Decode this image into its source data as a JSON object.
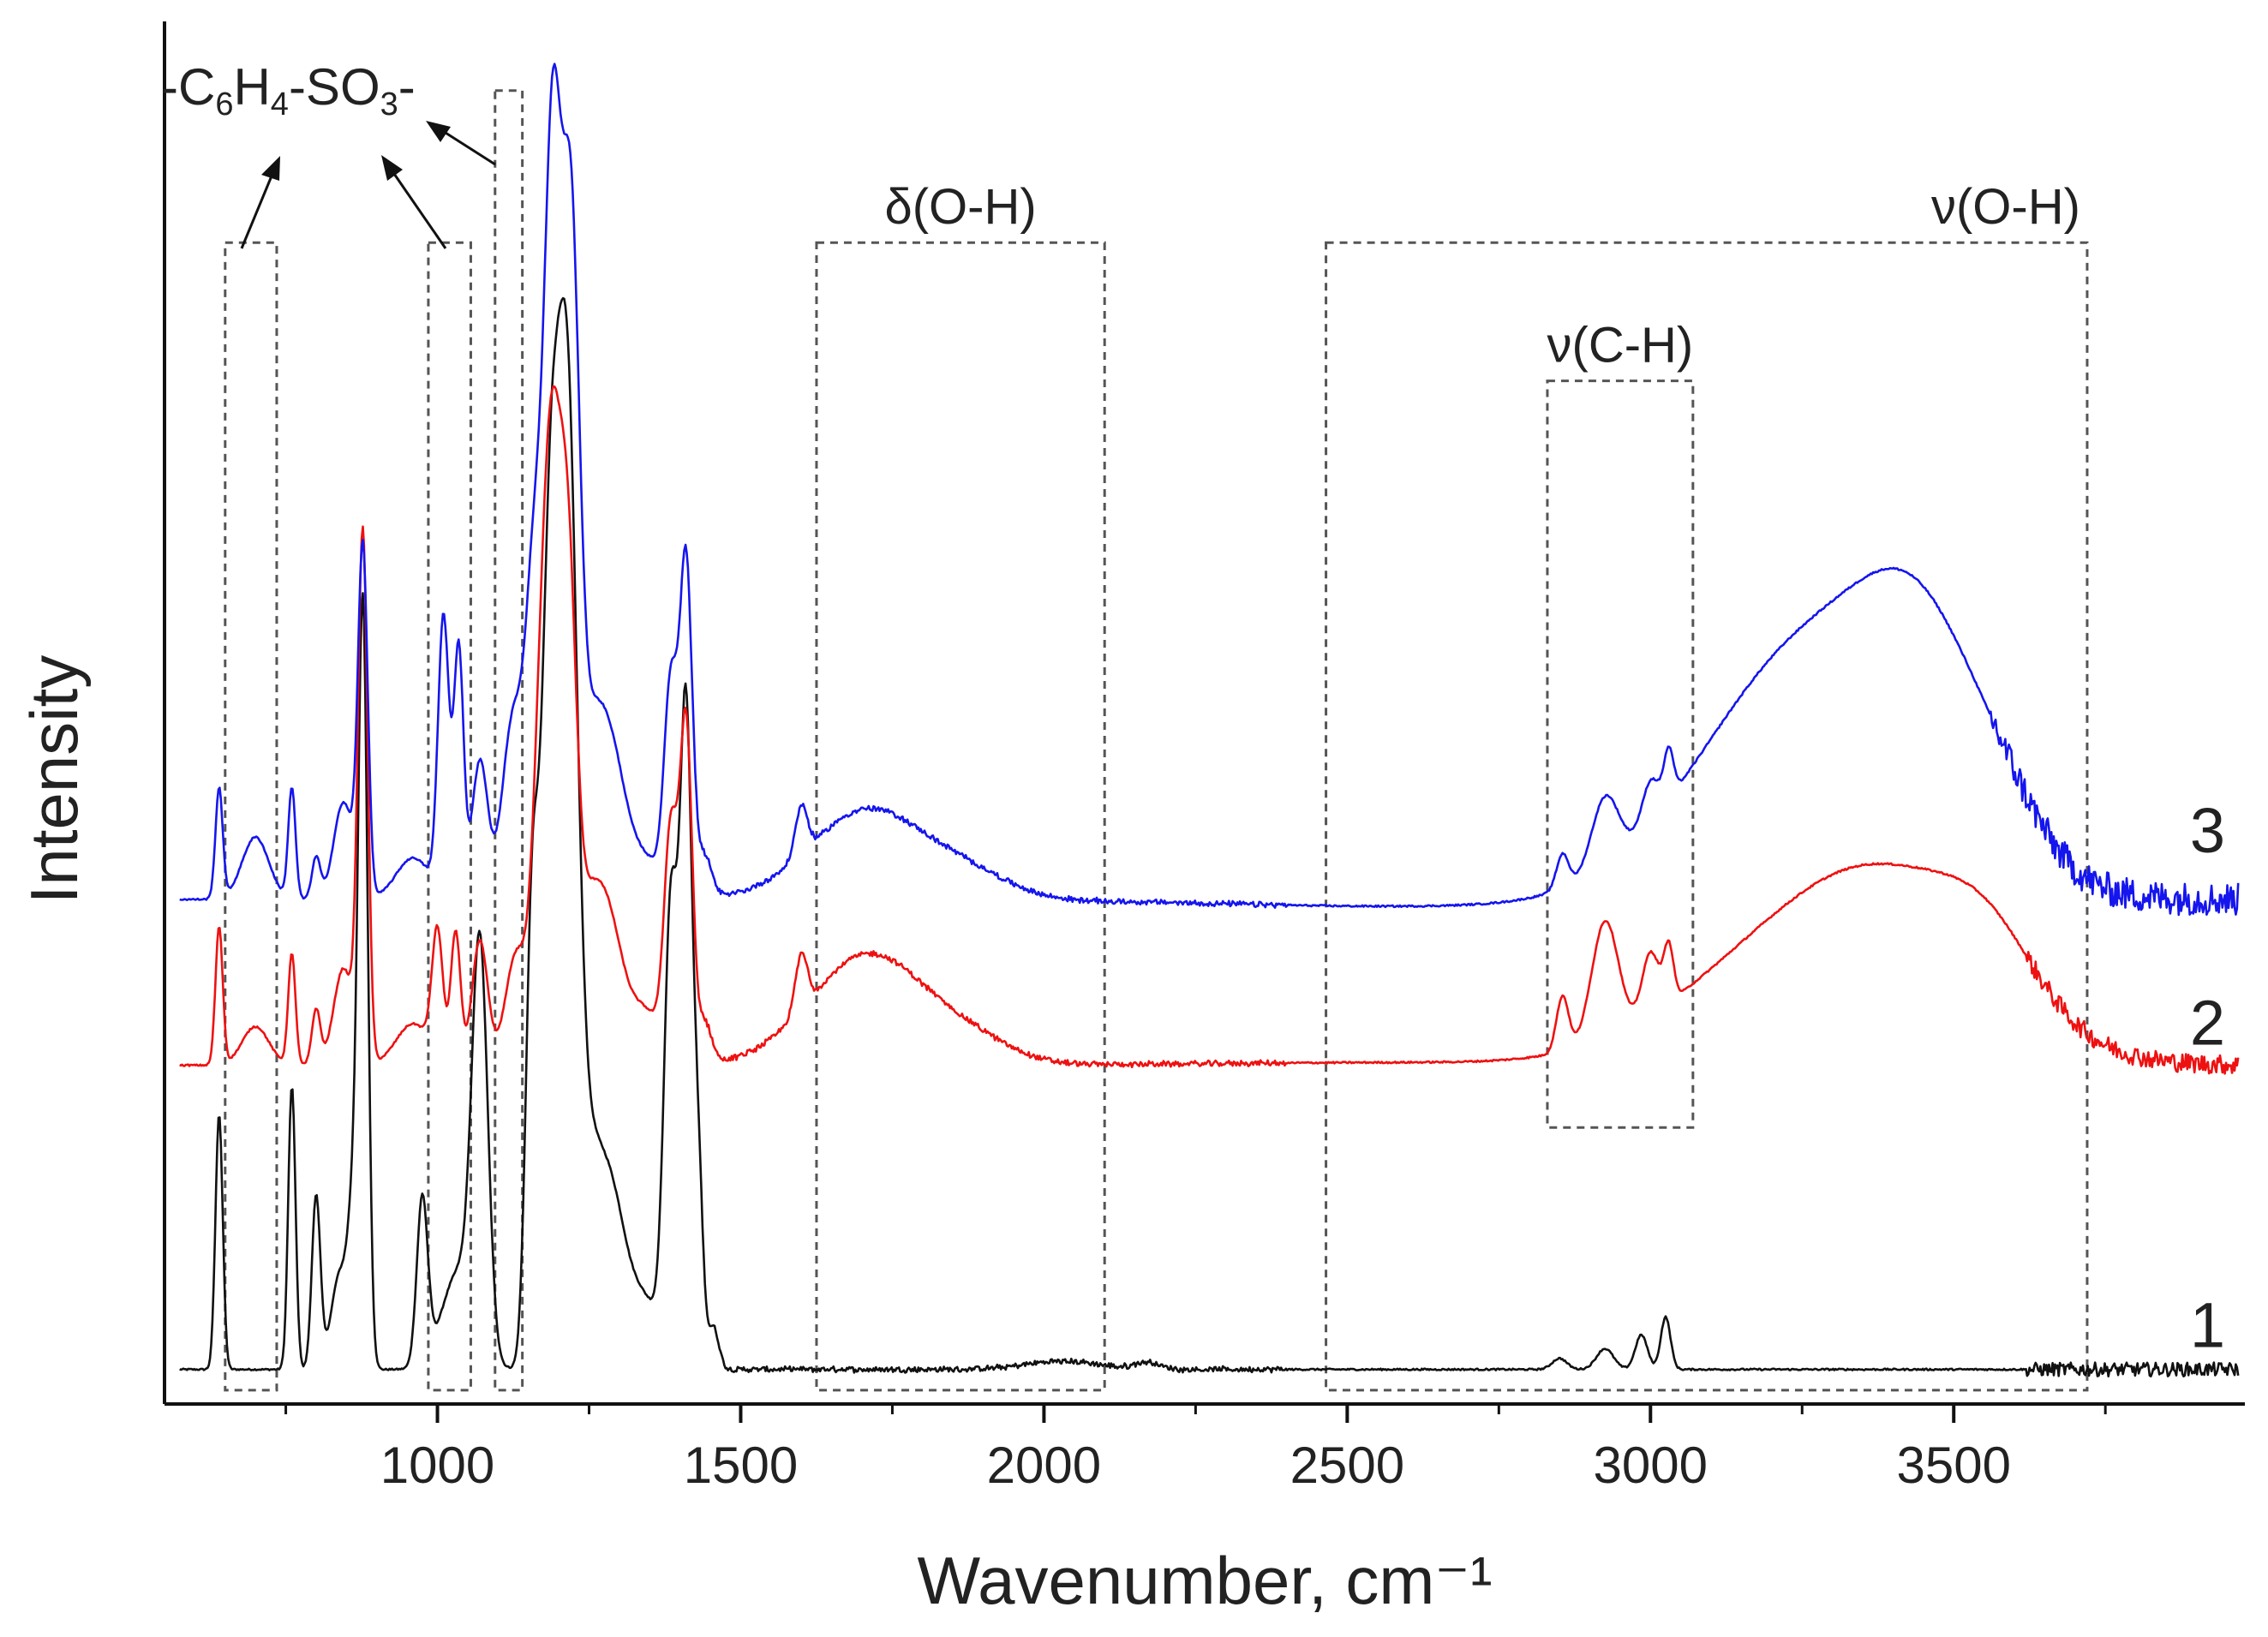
{
  "chart_data": {
    "type": "line",
    "title": "",
    "xlabel": "Wavenumber, cm⁻¹",
    "ylabel": "Intensity",
    "xlim": [
      550,
      3980
    ],
    "ylim": [
      0,
      100
    ],
    "x_ticks": [
      1000,
      1500,
      2000,
      2500,
      3000,
      3500
    ],
    "x_tick_labels": [
      "1000",
      "1500",
      "2000",
      "2500",
      "3000",
      "3500"
    ],
    "y_ticks_shown": false,
    "grid": false,
    "colors": {
      "1": "#111111",
      "2": "#ee1111",
      "3": "#1515ee",
      "box": "#555555"
    },
    "series": [
      {
        "name": "1",
        "label": "1",
        "color": "#111111",
        "baseline": 2.5,
        "noise_from": 3620,
        "noise_amp": 0.5,
        "peaks": [
          [
            640,
            18.5,
            6
          ],
          [
            760,
            20.5,
            6
          ],
          [
            800,
            12.5,
            7
          ],
          [
            840,
            7,
            15
          ],
          [
            860,
            8,
            8
          ],
          [
            877,
            55,
            8
          ],
          [
            975,
            12,
            9
          ],
          [
            1035,
            7,
            28
          ],
          [
            1070,
            28.5,
            13
          ],
          [
            1155,
            27,
            10
          ],
          [
            1185,
            56,
            16
          ],
          [
            1215,
            60,
            16
          ],
          [
            1250,
            14,
            24
          ],
          [
            1290,
            9,
            22
          ],
          [
            1340,
            5,
            30
          ],
          [
            1385,
            32,
            11
          ],
          [
            1410,
            46,
            10
          ],
          [
            1430,
            13,
            8
          ],
          [
            1455,
            3,
            9
          ],
          [
            2030,
            0.6,
            60
          ],
          [
            2170,
            0.5,
            20
          ],
          [
            2850,
            0.8,
            12
          ],
          [
            2925,
            1.5,
            14
          ],
          [
            2985,
            2.5,
            10
          ],
          [
            3025,
            3.8,
            8
          ]
        ]
      },
      {
        "name": "2",
        "label": "2",
        "color": "#ee1111",
        "baseline": 24.5,
        "noise_from": 3620,
        "noise_amp": 0.7,
        "peaks": [
          [
            640,
            10,
            6
          ],
          [
            700,
            2.8,
            22
          ],
          [
            760,
            8,
            6
          ],
          [
            800,
            4,
            7
          ],
          [
            845,
            7,
            16
          ],
          [
            877,
            38,
            8
          ],
          [
            960,
            3,
            28
          ],
          [
            1000,
            9,
            9
          ],
          [
            1030,
            9.5,
            8
          ],
          [
            1070,
            9,
            13
          ],
          [
            1130,
            8,
            18
          ],
          [
            1170,
            20,
            14
          ],
          [
            1190,
            35,
            14
          ],
          [
            1215,
            32,
            14
          ],
          [
            1250,
            10,
            22
          ],
          [
            1285,
            8,
            22
          ],
          [
            1340,
            4,
            30
          ],
          [
            1385,
            16,
            11
          ],
          [
            1410,
            24,
            10
          ],
          [
            1440,
            3,
            12
          ],
          [
            1600,
            4,
            10
          ],
          [
            1710,
            8,
            95
          ],
          [
            1880,
            1.5,
            70
          ],
          [
            2580,
            0.2,
            300
          ],
          [
            2855,
            4,
            10
          ],
          [
            2925,
            8.5,
            22
          ],
          [
            3000,
            4.5,
            14
          ],
          [
            3030,
            4,
            8
          ],
          [
            3200,
            6.5,
            170
          ],
          [
            3420,
            11,
            160
          ],
          [
            3560,
            3.5,
            75
          ]
        ]
      },
      {
        "name": "3",
        "label": "3",
        "color": "#1515ee",
        "baseline": 36.5,
        "noise_from": 3560,
        "noise_amp": 1.2,
        "peaks": [
          [
            640,
            8,
            6
          ],
          [
            700,
            4.5,
            22
          ],
          [
            760,
            8,
            6
          ],
          [
            800,
            3,
            7
          ],
          [
            845,
            7,
            16
          ],
          [
            877,
            25,
            8
          ],
          [
            960,
            3,
            28
          ],
          [
            1010,
            20,
            9
          ],
          [
            1035,
            18,
            8
          ],
          [
            1070,
            10,
            13
          ],
          [
            1125,
            13,
            18
          ],
          [
            1160,
            22,
            14
          ],
          [
            1190,
            53,
            14
          ],
          [
            1220,
            45,
            14
          ],
          [
            1255,
            11,
            22
          ],
          [
            1290,
            8,
            22
          ],
          [
            1340,
            3,
            30
          ],
          [
            1385,
            15,
            11
          ],
          [
            1410,
            24,
            10
          ],
          [
            1440,
            3,
            12
          ],
          [
            1600,
            3.5,
            10
          ],
          [
            1710,
            6.5,
            95
          ],
          [
            1880,
            1.5,
            70
          ],
          [
            2580,
            -0.5,
            300
          ],
          [
            2855,
            2.5,
            10
          ],
          [
            2925,
            5,
            22
          ],
          [
            3000,
            3,
            14
          ],
          [
            3030,
            3.5,
            8
          ],
          [
            3150,
            6,
            150
          ],
          [
            3330,
            16,
            165
          ],
          [
            3450,
            9,
            90
          ],
          [
            3580,
            3,
            70
          ]
        ]
      }
    ],
    "annotation_boxes": [
      {
        "x": [
          650,
          735
        ],
        "y": [
          1,
          84
        ],
        "label": ""
      },
      {
        "x": [
          985,
          1055
        ],
        "y": [
          1,
          84
        ],
        "label": ""
      },
      {
        "x": [
          1095,
          1140
        ],
        "y": [
          1,
          95
        ],
        "label": ""
      },
      {
        "x": [
          1625,
          2100
        ],
        "y": [
          1,
          84
        ],
        "label": "δ(O-H)"
      },
      {
        "x": [
          2465,
          3720
        ],
        "y": [
          1,
          84
        ],
        "label": "ν(O-H)"
      },
      {
        "x": [
          2830,
          3070
        ],
        "y": [
          20,
          74
        ],
        "label": "ν(C-H)"
      }
    ],
    "group_annotation": {
      "text_parts": [
        {
          "t": "-C",
          "sub": false
        },
        {
          "t": "6",
          "sub": true
        },
        {
          "t": "H",
          "sub": false
        },
        {
          "t": "4",
          "sub": true
        },
        {
          "t": "-SO",
          "sub": false
        },
        {
          "t": "3",
          "sub": true
        },
        {
          "t": "-",
          "sub": false
        }
      ]
    },
    "legend": "inline series numbers at right end of traces"
  }
}
